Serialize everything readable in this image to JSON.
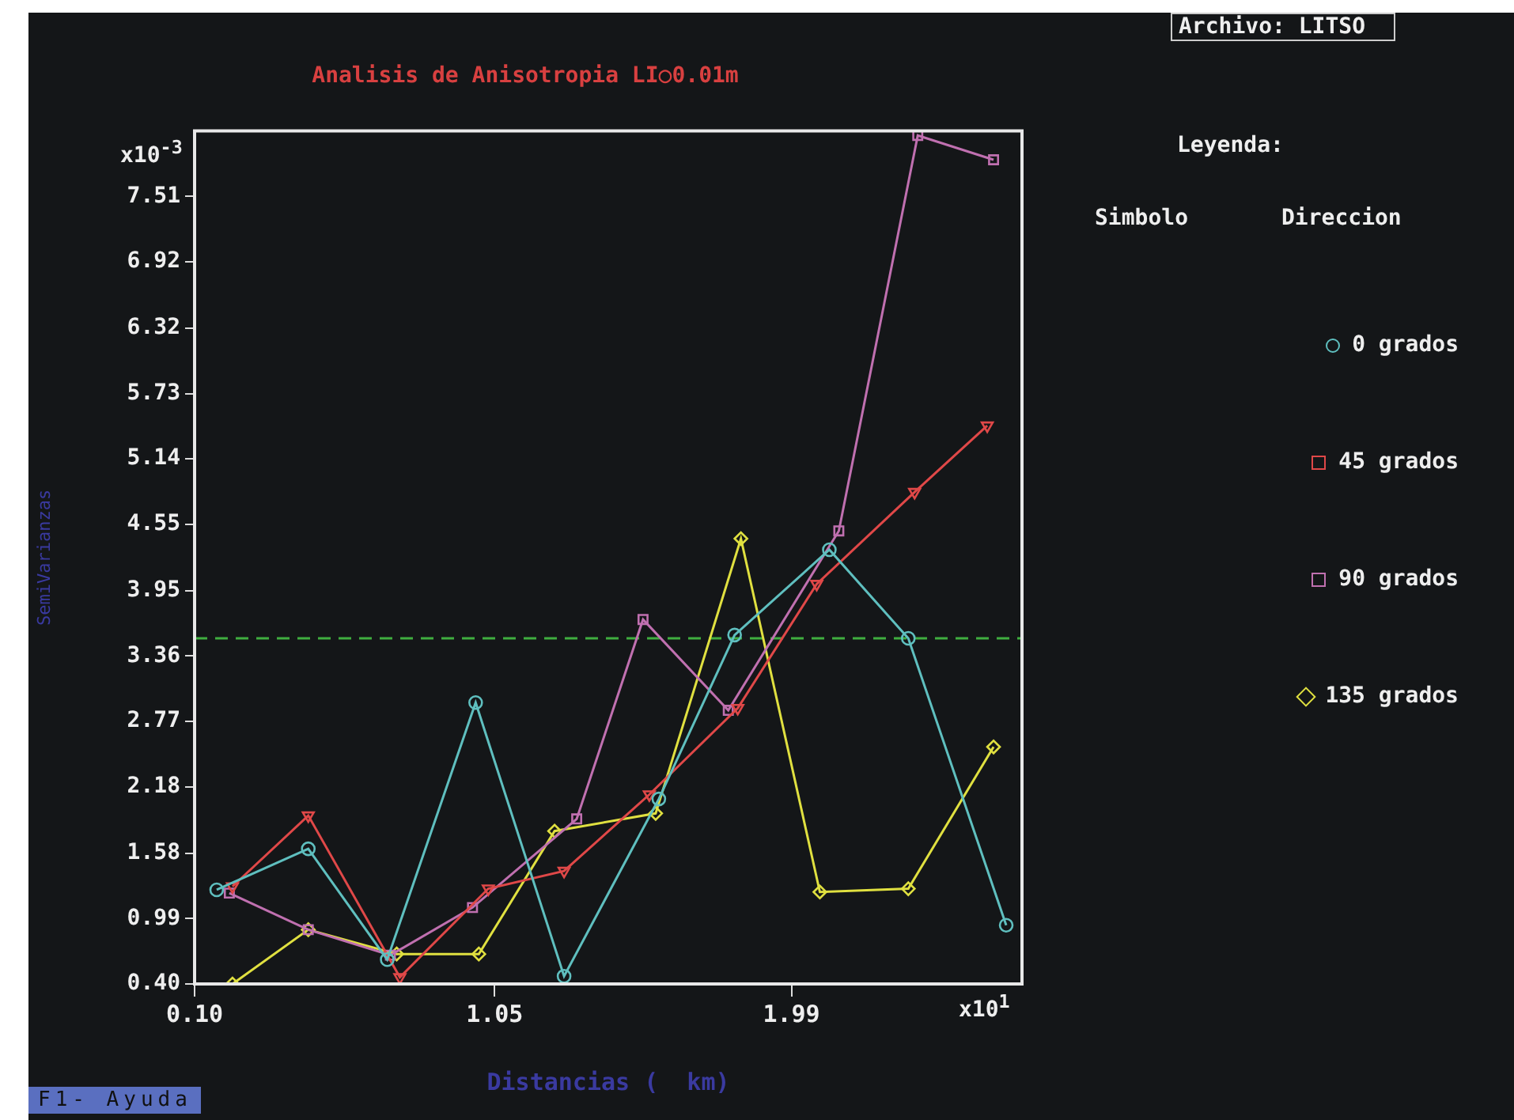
{
  "chart_data": {
    "type": "line",
    "title": "Analisis de Anisotropia LI○0.01m",
    "xlabel": "Distancias (  km)",
    "ylabel": "SemiVarianzas",
    "legend_title": "Leyenda:",
    "xlim": [
      0.1,
      2.72
    ],
    "xticks": [
      {
        "value": 0.1,
        "label": "0.10"
      },
      1.05,
      1.99
    ],
    "ylim": [
      0.4,
      8.1
    ],
    "yticks": [
      {
        "value": 0.4,
        "label": "0.40"
      },
      0.99,
      1.58,
      2.18,
      2.77,
      3.36,
      3.95,
      4.55,
      5.14,
      5.73,
      6.32,
      6.92,
      7.51
    ],
    "grid": false,
    "legend": "right",
    "line_style": "solid",
    "ref_lines": [
      {
        "axis": "y",
        "value": 3.52,
        "color": "#3fae3f",
        "line_style": "dashed"
      }
    ],
    "annotations": [
      "x10$^{-3}$",
      "x10$^{1}$",
      "Archivo: LITSO",
      "Simbolo",
      "Direccion",
      "F1- Ayuda"
    ],
    "series": [
      {
        "name": "0 grados",
        "color": "#5fbfbf",
        "marker": "circle",
        "x": [
          0.17,
          0.46,
          0.71,
          0.99,
          1.27,
          1.57,
          1.81,
          2.11,
          2.36,
          2.67
        ],
        "values": [
          1.25,
          1.62,
          0.62,
          2.94,
          0.47,
          2.07,
          3.55,
          4.32,
          3.52,
          0.93
        ]
      },
      {
        "name": "45 grados",
        "color": "#e04848",
        "marker": "triangle",
        "x": [
          0.22,
          0.46,
          0.75,
          1.03,
          1.27,
          1.54,
          1.82,
          2.07,
          2.38,
          2.61
        ],
        "values": [
          1.28,
          1.92,
          0.46,
          1.26,
          1.42,
          2.11,
          2.89,
          4.01,
          4.84,
          5.44
        ]
      },
      {
        "name": "90 grados",
        "color": "#c070b0",
        "marker": "square",
        "x": [
          0.21,
          0.46,
          0.72,
          0.98,
          1.31,
          1.52,
          1.79,
          2.14,
          2.39,
          2.63
        ],
        "values": [
          1.22,
          0.89,
          0.66,
          1.09,
          1.89,
          3.69,
          2.87,
          4.49,
          8.06,
          7.84
        ]
      },
      {
        "name": "135 grados",
        "color": "#e0e040",
        "marker": "diamond",
        "x": [
          0.22,
          0.46,
          0.74,
          1.0,
          1.24,
          1.56,
          1.83,
          2.08,
          2.36,
          2.63
        ],
        "values": [
          0.4,
          0.89,
          0.67,
          0.67,
          1.78,
          1.94,
          4.42,
          1.23,
          1.26,
          2.54
        ]
      }
    ]
  }
}
